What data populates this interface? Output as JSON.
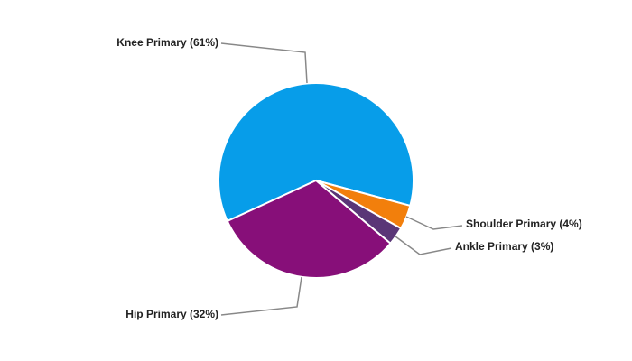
{
  "chart_data": {
    "type": "pie",
    "values": [
      61,
      4,
      3,
      32
    ],
    "value_labels": [
      "Knee Primary (61%)",
      "Shoulder Primary (4%)",
      "Ankle Primary (3%)",
      "Hip Primary (32%)"
    ],
    "colors": [
      "#079de9",
      "#f27f0c",
      "#5a3677",
      "#870f79"
    ]
  }
}
